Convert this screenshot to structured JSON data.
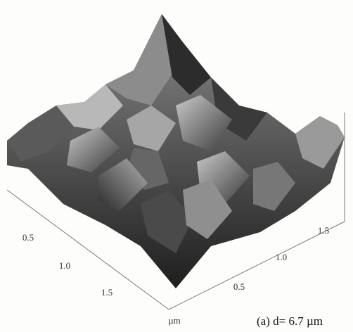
{
  "left_axis": {
    "ticks": [
      "0.5",
      "1.0",
      "1.5"
    ]
  },
  "right_axis": {
    "ticks": [
      "0.5",
      "1.0",
      "1.5"
    ]
  },
  "unit": "µm",
  "caption": "(a) d= 6.7 µm"
}
